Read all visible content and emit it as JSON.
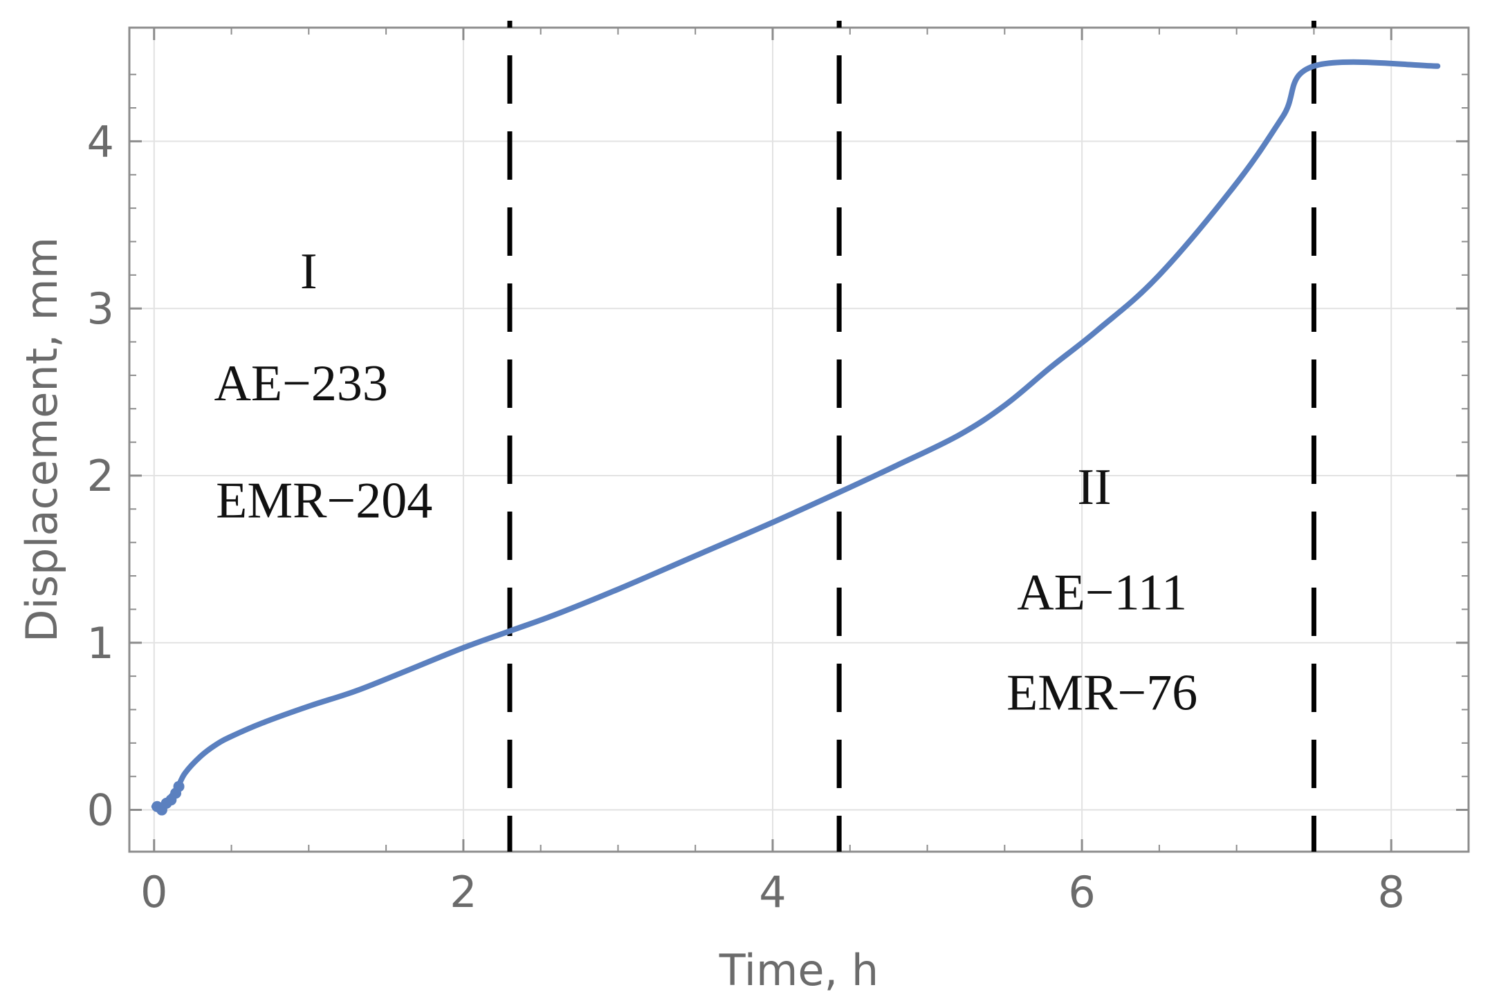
{
  "chart_data": {
    "type": "line",
    "title": "",
    "xlabel": "Time, h",
    "ylabel": "Displacement, mm",
    "xlim": [
      -0.16,
      8.5
    ],
    "ylim": [
      -0.25,
      4.68
    ],
    "xticks": [
      0,
      2,
      4,
      6,
      8
    ],
    "xtick_labels": [
      "0",
      "2",
      "4",
      "6",
      "8"
    ],
    "yticks": [
      0,
      1,
      2,
      3,
      4
    ],
    "ytick_labels": [
      "0",
      "1",
      "2",
      "3",
      "4"
    ],
    "grid": true,
    "line_color": "#5b80bf",
    "vlines_color": "#000000",
    "vlines": [
      2.3,
      4.43,
      7.5
    ],
    "series": [
      {
        "x": [
          0,
          0.05,
          0.1,
          0.15,
          0.2,
          0.3,
          0.4,
          0.5,
          0.7,
          1.0,
          1.3,
          1.6,
          2.0,
          2.3,
          2.6,
          3.0,
          3.5,
          4.0,
          4.43,
          4.8,
          5.2,
          5.5,
          5.8,
          6.1,
          6.5,
          7.0,
          7.3,
          7.5,
          8.3
        ],
        "y": [
          0.02,
          0.01,
          0.07,
          0.13,
          0.22,
          0.32,
          0.39,
          0.44,
          0.52,
          0.62,
          0.71,
          0.82,
          0.97,
          1.07,
          1.17,
          1.32,
          1.52,
          1.72,
          1.9,
          2.06,
          2.24,
          2.42,
          2.65,
          2.87,
          3.2,
          3.75,
          4.15,
          4.45,
          4.45
        ]
      }
    ],
    "noisy_start_points": [
      {
        "x": 0.02,
        "y": 0.02
      },
      {
        "x": 0.05,
        "y": 0.0
      },
      {
        "x": 0.08,
        "y": 0.04
      },
      {
        "x": 0.11,
        "y": 0.06
      },
      {
        "x": 0.14,
        "y": 0.1
      },
      {
        "x": 0.16,
        "y": 0.14
      }
    ],
    "annotations": [
      {
        "text": "I",
        "x": 1.0,
        "y": 3.12
      },
      {
        "text": "AE−233",
        "x": 0.95,
        "y": 2.45
      },
      {
        "text": "EMR−204",
        "x": 1.1,
        "y": 1.75
      },
      {
        "text": "II",
        "x": 6.08,
        "y": 1.83
      },
      {
        "text": "AE−111",
        "x": 6.13,
        "y": 1.2
      },
      {
        "text": "EMR−76",
        "x": 6.13,
        "y": 0.6
      }
    ]
  }
}
